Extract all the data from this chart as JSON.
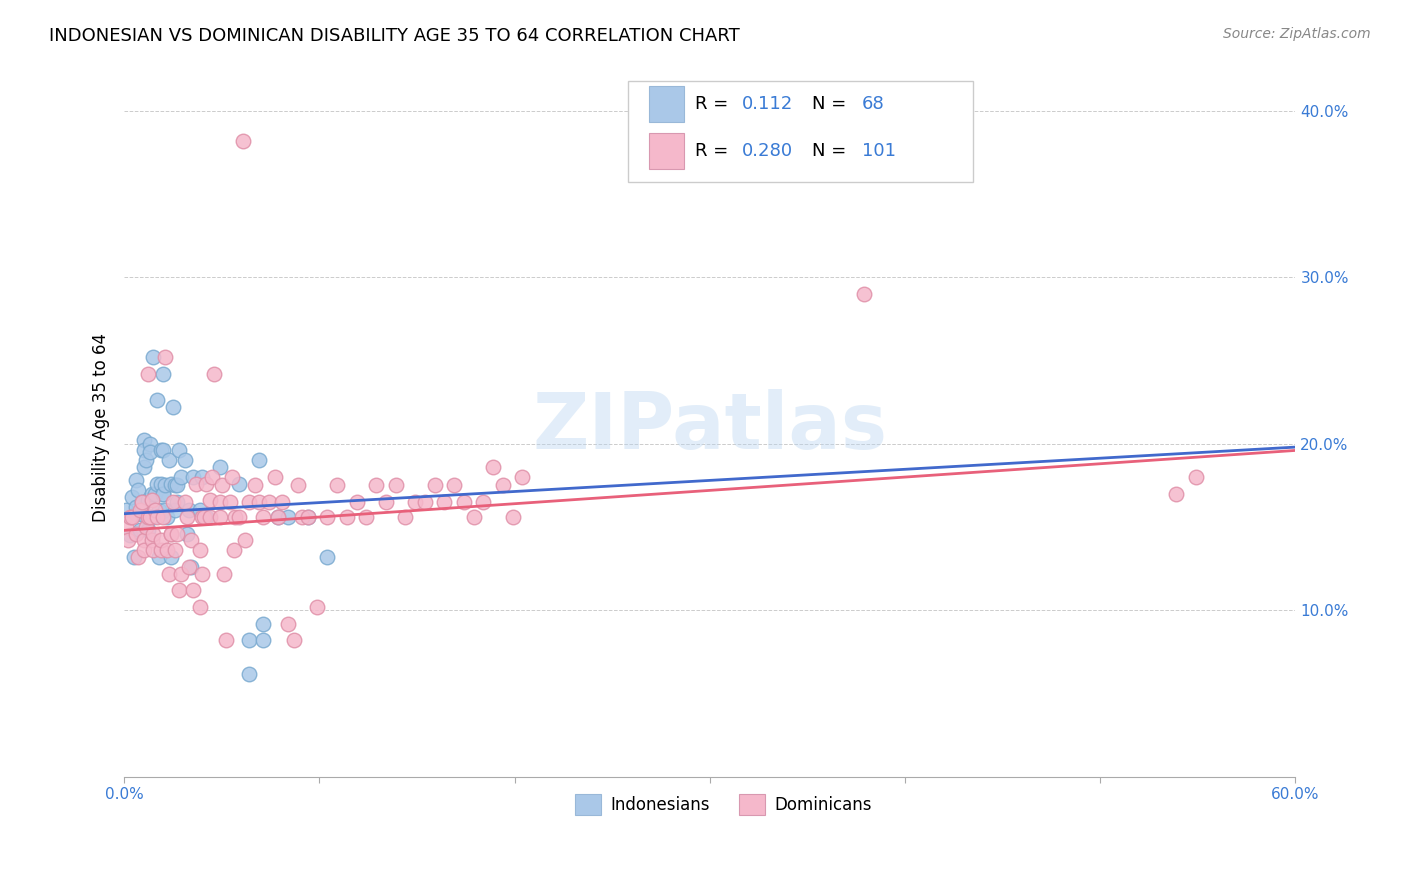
{
  "title": "INDONESIAN VS DOMINICAN DISABILITY AGE 35 TO 64 CORRELATION CHART",
  "source": "Source: ZipAtlas.com",
  "ylabel": "Disability Age 35 to 64",
  "xlim": [
    0.0,
    0.6
  ],
  "ylim": [
    0.0,
    0.42
  ],
  "xticks": [
    0.0,
    0.1,
    0.2,
    0.3,
    0.4,
    0.5,
    0.6
  ],
  "yticks": [
    0.0,
    0.1,
    0.2,
    0.3,
    0.4
  ],
  "xtick_labels": [
    "0.0%",
    "",
    "",
    "",
    "",
    "",
    "60.0%"
  ],
  "ytick_labels": [
    "",
    "10.0%",
    "20.0%",
    "30.0%",
    "40.0%"
  ],
  "watermark": "ZIPatlas",
  "indonesian_color": "#aac8e8",
  "dominican_color": "#f5b8cb",
  "indonesian_line_color": "#4169cc",
  "dominican_line_color": "#e8607a",
  "indonesian_line": [
    [
      0.0,
      0.158
    ],
    [
      0.6,
      0.198
    ]
  ],
  "dominican_line": [
    [
      0.0,
      0.148
    ],
    [
      0.6,
      0.196
    ]
  ],
  "indonesian_scatter": [
    [
      0.001,
      0.16
    ],
    [
      0.003,
      0.145
    ],
    [
      0.004,
      0.168
    ],
    [
      0.005,
      0.132
    ],
    [
      0.006,
      0.178
    ],
    [
      0.006,
      0.158
    ],
    [
      0.006,
      0.162
    ],
    [
      0.007,
      0.172
    ],
    [
      0.008,
      0.148
    ],
    [
      0.009,
      0.158
    ],
    [
      0.009,
      0.165
    ],
    [
      0.009,
      0.16
    ],
    [
      0.01,
      0.202
    ],
    [
      0.01,
      0.196
    ],
    [
      0.01,
      0.186
    ],
    [
      0.011,
      0.19
    ],
    [
      0.012,
      0.166
    ],
    [
      0.012,
      0.148
    ],
    [
      0.013,
      0.156
    ],
    [
      0.013,
      0.2
    ],
    [
      0.013,
      0.195
    ],
    [
      0.014,
      0.17
    ],
    [
      0.014,
      0.156
    ],
    [
      0.015,
      0.252
    ],
    [
      0.015,
      0.156
    ],
    [
      0.016,
      0.17
    ],
    [
      0.017,
      0.226
    ],
    [
      0.017,
      0.176
    ],
    [
      0.018,
      0.132
    ],
    [
      0.018,
      0.16
    ],
    [
      0.019,
      0.196
    ],
    [
      0.019,
      0.176
    ],
    [
      0.02,
      0.17
    ],
    [
      0.02,
      0.196
    ],
    [
      0.02,
      0.17
    ],
    [
      0.02,
      0.242
    ],
    [
      0.021,
      0.175
    ],
    [
      0.021,
      0.16
    ],
    [
      0.022,
      0.156
    ],
    [
      0.023,
      0.19
    ],
    [
      0.024,
      0.176
    ],
    [
      0.024,
      0.132
    ],
    [
      0.025,
      0.222
    ],
    [
      0.026,
      0.175
    ],
    [
      0.026,
      0.16
    ],
    [
      0.027,
      0.165
    ],
    [
      0.027,
      0.175
    ],
    [
      0.028,
      0.196
    ],
    [
      0.029,
      0.18
    ],
    [
      0.031,
      0.19
    ],
    [
      0.032,
      0.146
    ],
    [
      0.033,
      0.16
    ],
    [
      0.034,
      0.126
    ],
    [
      0.035,
      0.18
    ],
    [
      0.039,
      0.16
    ],
    [
      0.04,
      0.18
    ],
    [
      0.042,
      0.156
    ],
    [
      0.049,
      0.186
    ],
    [
      0.059,
      0.176
    ],
    [
      0.064,
      0.082
    ],
    [
      0.064,
      0.062
    ],
    [
      0.069,
      0.19
    ],
    [
      0.071,
      0.092
    ],
    [
      0.071,
      0.082
    ],
    [
      0.079,
      0.156
    ],
    [
      0.084,
      0.156
    ],
    [
      0.094,
      0.156
    ],
    [
      0.104,
      0.132
    ]
  ],
  "dominican_scatter": [
    [
      0.001,
      0.15
    ],
    [
      0.002,
      0.142
    ],
    [
      0.003,
      0.156
    ],
    [
      0.004,
      0.156
    ],
    [
      0.006,
      0.146
    ],
    [
      0.007,
      0.132
    ],
    [
      0.008,
      0.16
    ],
    [
      0.009,
      0.165
    ],
    [
      0.01,
      0.142
    ],
    [
      0.01,
      0.136
    ],
    [
      0.011,
      0.15
    ],
    [
      0.012,
      0.156
    ],
    [
      0.012,
      0.242
    ],
    [
      0.013,
      0.156
    ],
    [
      0.014,
      0.142
    ],
    [
      0.014,
      0.166
    ],
    [
      0.015,
      0.146
    ],
    [
      0.015,
      0.136
    ],
    [
      0.016,
      0.16
    ],
    [
      0.017,
      0.156
    ],
    [
      0.019,
      0.136
    ],
    [
      0.019,
      0.142
    ],
    [
      0.02,
      0.156
    ],
    [
      0.021,
      0.252
    ],
    [
      0.022,
      0.136
    ],
    [
      0.023,
      0.122
    ],
    [
      0.024,
      0.146
    ],
    [
      0.024,
      0.146
    ],
    [
      0.025,
      0.165
    ],
    [
      0.026,
      0.136
    ],
    [
      0.027,
      0.146
    ],
    [
      0.028,
      0.112
    ],
    [
      0.029,
      0.122
    ],
    [
      0.031,
      0.165
    ],
    [
      0.032,
      0.156
    ],
    [
      0.033,
      0.126
    ],
    [
      0.034,
      0.142
    ],
    [
      0.035,
      0.112
    ],
    [
      0.037,
      0.176
    ],
    [
      0.039,
      0.102
    ],
    [
      0.039,
      0.136
    ],
    [
      0.04,
      0.156
    ],
    [
      0.04,
      0.122
    ],
    [
      0.041,
      0.156
    ],
    [
      0.042,
      0.176
    ],
    [
      0.044,
      0.166
    ],
    [
      0.044,
      0.156
    ],
    [
      0.045,
      0.18
    ],
    [
      0.046,
      0.242
    ],
    [
      0.049,
      0.156
    ],
    [
      0.049,
      0.165
    ],
    [
      0.05,
      0.175
    ],
    [
      0.051,
      0.122
    ],
    [
      0.052,
      0.082
    ],
    [
      0.054,
      0.165
    ],
    [
      0.055,
      0.18
    ],
    [
      0.056,
      0.136
    ],
    [
      0.057,
      0.156
    ],
    [
      0.059,
      0.156
    ],
    [
      0.061,
      0.382
    ],
    [
      0.062,
      0.142
    ],
    [
      0.064,
      0.165
    ],
    [
      0.067,
      0.175
    ],
    [
      0.069,
      0.165
    ],
    [
      0.071,
      0.156
    ],
    [
      0.074,
      0.165
    ],
    [
      0.077,
      0.18
    ],
    [
      0.079,
      0.156
    ],
    [
      0.081,
      0.165
    ],
    [
      0.084,
      0.092
    ],
    [
      0.087,
      0.082
    ],
    [
      0.089,
      0.175
    ],
    [
      0.091,
      0.156
    ],
    [
      0.094,
      0.156
    ],
    [
      0.099,
      0.102
    ],
    [
      0.104,
      0.156
    ],
    [
      0.109,
      0.175
    ],
    [
      0.114,
      0.156
    ],
    [
      0.119,
      0.165
    ],
    [
      0.124,
      0.156
    ],
    [
      0.129,
      0.175
    ],
    [
      0.134,
      0.165
    ],
    [
      0.139,
      0.175
    ],
    [
      0.144,
      0.156
    ],
    [
      0.149,
      0.165
    ],
    [
      0.154,
      0.165
    ],
    [
      0.159,
      0.175
    ],
    [
      0.164,
      0.165
    ],
    [
      0.169,
      0.175
    ],
    [
      0.174,
      0.165
    ],
    [
      0.179,
      0.156
    ],
    [
      0.184,
      0.165
    ],
    [
      0.189,
      0.186
    ],
    [
      0.194,
      0.175
    ],
    [
      0.199,
      0.156
    ],
    [
      0.204,
      0.18
    ],
    [
      0.379,
      0.29
    ],
    [
      0.539,
      0.17
    ],
    [
      0.549,
      0.18
    ]
  ]
}
